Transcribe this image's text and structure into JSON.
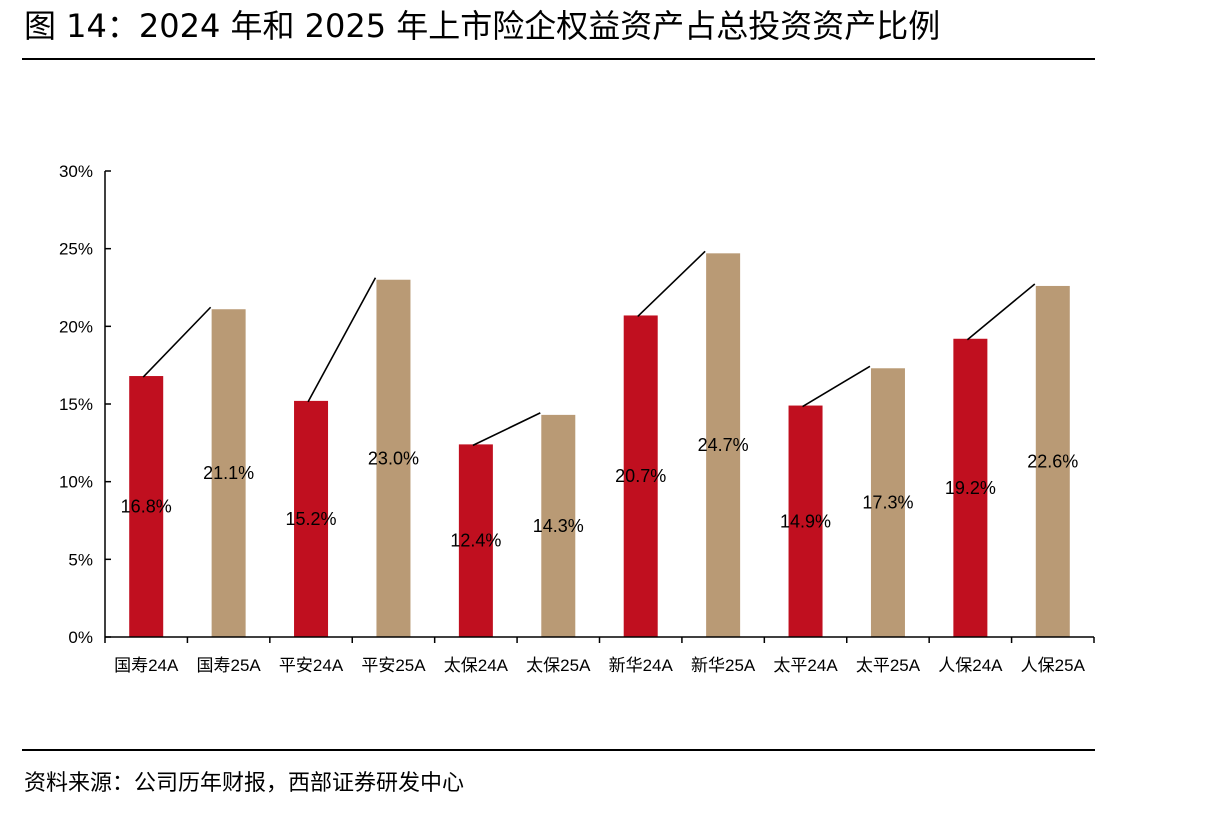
{
  "figure": {
    "title": "图 14：2024 年和 2025 年上市险企权益资产占总投资资产比例",
    "source": "资料来源：公司历年财报，西部证券研发中心"
  },
  "colors": {
    "bar_2024": "#c00f1f",
    "bar_2025": "#b99a75",
    "axis": "#000000"
  },
  "chart_data": {
    "type": "bar",
    "title": "",
    "xlabel": "",
    "ylabel": "",
    "ylim": [
      0,
      30
    ],
    "yticks": [
      0,
      5,
      10,
      15,
      20,
      25,
      30
    ],
    "ytick_labels": [
      "0%",
      "5%",
      "10%",
      "15%",
      "20%",
      "25%",
      "30%"
    ],
    "categories": [
      "国寿24A",
      "国寿25A",
      "平安24A",
      "平安25A",
      "太保24A",
      "太保25A",
      "新华24A",
      "新华25A",
      "太平24A",
      "太平25A",
      "人保24A",
      "人保25A"
    ],
    "values": [
      16.8,
      21.1,
      15.2,
      23.0,
      12.4,
      14.3,
      20.7,
      24.7,
      14.9,
      17.3,
      19.2,
      22.6
    ],
    "value_labels": [
      "16.8%",
      "21.1%",
      "15.2%",
      "23.0%",
      "12.4%",
      "14.3%",
      "20.7%",
      "24.7%",
      "14.9%",
      "17.3%",
      "19.2%",
      "22.6%"
    ],
    "bar_colors": [
      "bar_2024",
      "bar_2025",
      "bar_2024",
      "bar_2025",
      "bar_2024",
      "bar_2025",
      "bar_2024",
      "bar_2025",
      "bar_2024",
      "bar_2025",
      "bar_2024",
      "bar_2025"
    ],
    "connector_pairs": [
      [
        0,
        1
      ],
      [
        2,
        3
      ],
      [
        4,
        5
      ],
      [
        6,
        7
      ],
      [
        8,
        9
      ],
      [
        10,
        11
      ]
    ],
    "grid": false,
    "legend": "none"
  }
}
